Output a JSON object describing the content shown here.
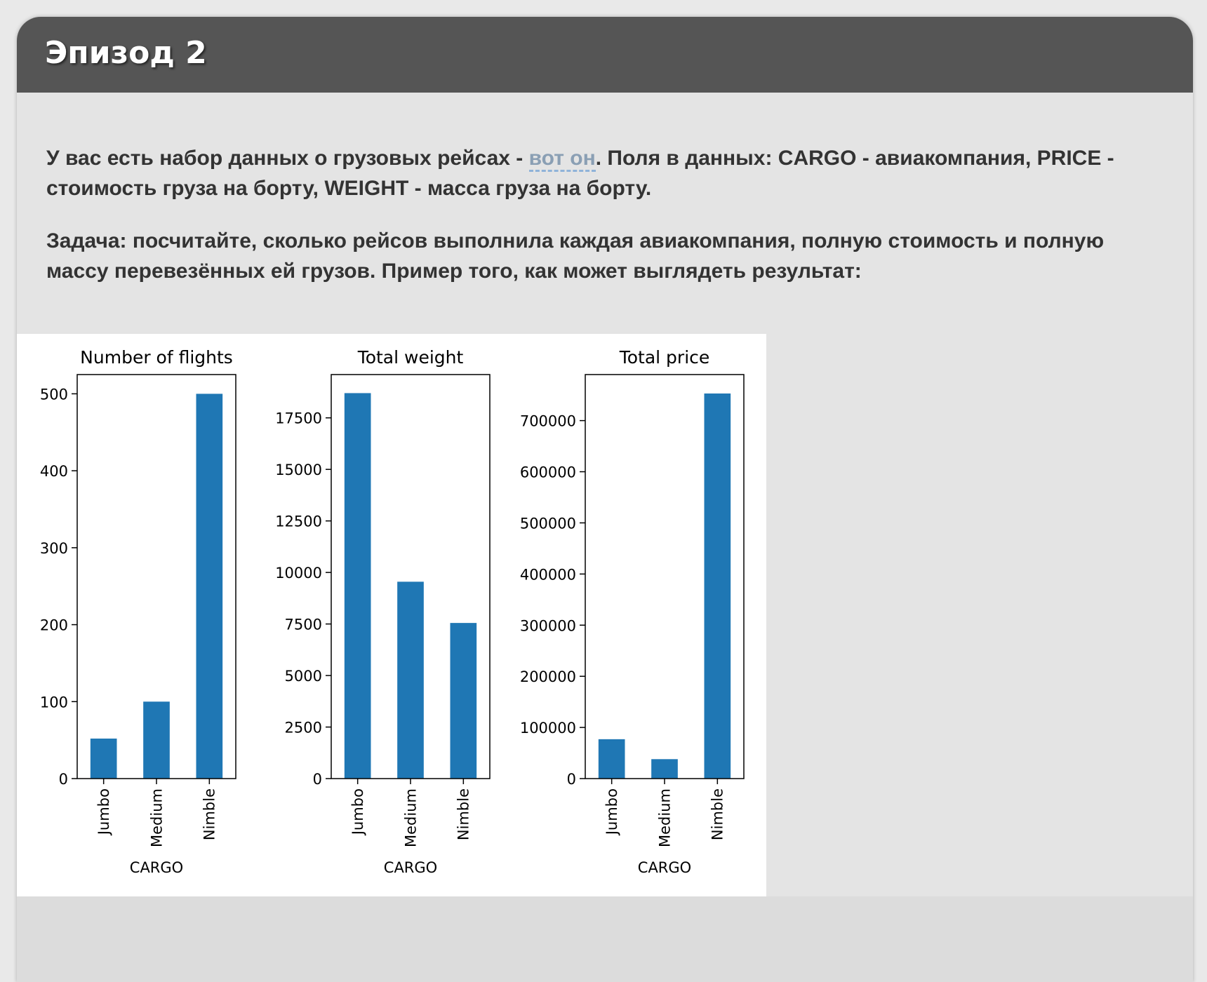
{
  "episode": {
    "title": "Эпизод 2",
    "paragraph1": {
      "before_link": "У вас есть набор данных о грузовых рейсах - ",
      "link_text": "вот он",
      "after_link": ". Поля в данных: CARGO - авиакомпания, PRICE - стоимость груза на борту, WEIGHT - масса груза на борту."
    },
    "paragraph2": "Задача: посчитайте, сколько рейсов выполнила каждая авиакомпания, полную стоимость и полную массу перевезённых ей грузов. Пример того, как может выглядеть результат:"
  },
  "colors": {
    "bar": "#1f77b4",
    "header": "#555555"
  },
  "chart_data": [
    {
      "type": "bar",
      "title": "Number of flights",
      "xlabel": "CARGO",
      "ylabel": "",
      "categories": [
        "Jumbo",
        "Medium",
        "Nimble"
      ],
      "values": [
        52,
        100,
        500
      ],
      "ylim": [
        0,
        525
      ],
      "yticks": [
        0,
        100,
        200,
        300,
        400,
        500
      ],
      "grid": false
    },
    {
      "type": "bar",
      "title": "Total weight",
      "xlabel": "CARGO",
      "ylabel": "",
      "categories": [
        "Jumbo",
        "Medium",
        "Nimble"
      ],
      "values": [
        18700,
        9550,
        7550
      ],
      "ylim": [
        0,
        19600
      ],
      "yticks": [
        0,
        2500,
        5000,
        7500,
        10000,
        12500,
        15000,
        17500
      ],
      "grid": false
    },
    {
      "type": "bar",
      "title": "Total price",
      "xlabel": "CARGO",
      "ylabel": "",
      "categories": [
        "Jumbo",
        "Medium",
        "Nimble"
      ],
      "values": [
        77000,
        38000,
        753000
      ],
      "ylim": [
        0,
        790000
      ],
      "yticks": [
        0,
        100000,
        200000,
        300000,
        400000,
        500000,
        600000,
        700000
      ],
      "grid": false
    }
  ]
}
